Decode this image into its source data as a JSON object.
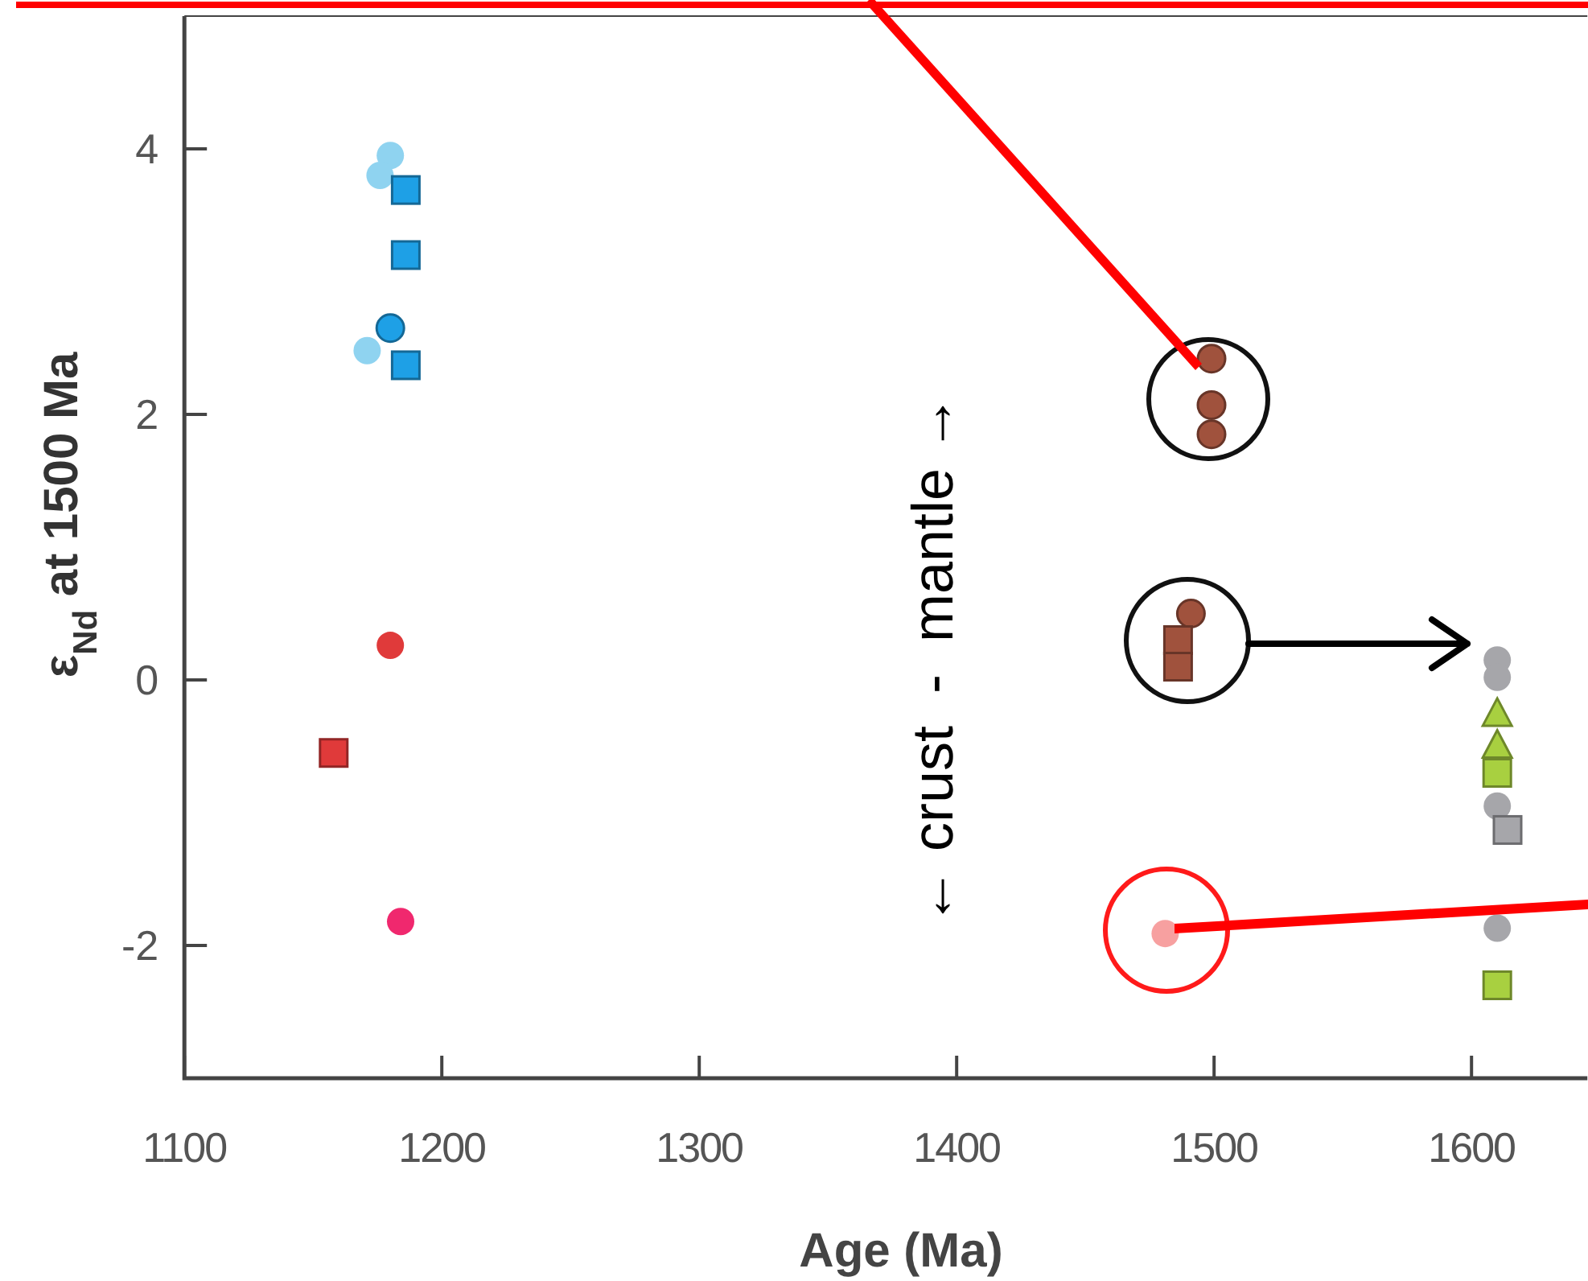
{
  "chart_data": {
    "type": "scatter",
    "xlabel": "Age (Ma)",
    "ylabel": "ε$_{Nd}$ at 1500 Ma",
    "xlim": [
      1100,
      1645
    ],
    "ylim": [
      -3,
      5
    ],
    "xticks": [
      1100,
      1200,
      1300,
      1400,
      1500,
      1600
    ],
    "yticks": [
      -2,
      0,
      2,
      4
    ],
    "grid": false,
    "annotations": [
      "← crust  -  mantle →"
    ],
    "series": [
      {
        "color": "#8fd3f0",
        "marker": "circle",
        "x": [
          1180,
          1176,
          1171
        ],
        "values": [
          3.95,
          3.8,
          2.48
        ]
      },
      {
        "color": "#1ea0e6",
        "marker": "square",
        "x": [
          1186,
          1186,
          1186
        ],
        "values": [
          3.69,
          3.2,
          2.37
        ]
      },
      {
        "color": "#1ea0e6",
        "marker": "circle",
        "x": [
          1180
        ],
        "values": [
          2.65
        ]
      },
      {
        "color": "#e03a3a",
        "marker": "circle",
        "x": [
          1180
        ],
        "values": [
          0.26
        ]
      },
      {
        "color": "#e03a3a",
        "marker": "square",
        "x": [
          1158
        ],
        "values": [
          -0.55
        ]
      },
      {
        "color": "#f0286e",
        "marker": "circle",
        "x": [
          1184
        ],
        "values": [
          -1.82
        ]
      },
      {
        "color": "#a0523d",
        "marker": "circle",
        "x": [
          1499,
          1499,
          1499,
          1491
        ],
        "values": [
          2.42,
          2.07,
          1.85,
          0.5
        ]
      },
      {
        "color": "#a0523d",
        "marker": "square",
        "x": [
          1486,
          1486
        ],
        "values": [
          0.3,
          0.1
        ]
      },
      {
        "color": "#f7a0a0",
        "marker": "circle",
        "x": [
          1481
        ],
        "values": [
          -1.91
        ]
      },
      {
        "color": "#a6a6aa",
        "marker": "circle",
        "x": [
          1610,
          1610,
          1610,
          1610
        ],
        "values": [
          0.15,
          0.02,
          -0.95,
          -1.87
        ]
      },
      {
        "color": "#a6a6aa",
        "marker": "square",
        "x": [
          1614
        ],
        "values": [
          -1.13
        ]
      },
      {
        "color": "#a8d040",
        "marker": "triangle",
        "x": [
          1610,
          1610
        ],
        "values": [
          -0.26,
          -0.5
        ]
      },
      {
        "color": "#a8d040",
        "marker": "square",
        "x": [
          1610,
          1610
        ],
        "values": [
          -0.7,
          -2.3
        ]
      }
    ]
  }
}
